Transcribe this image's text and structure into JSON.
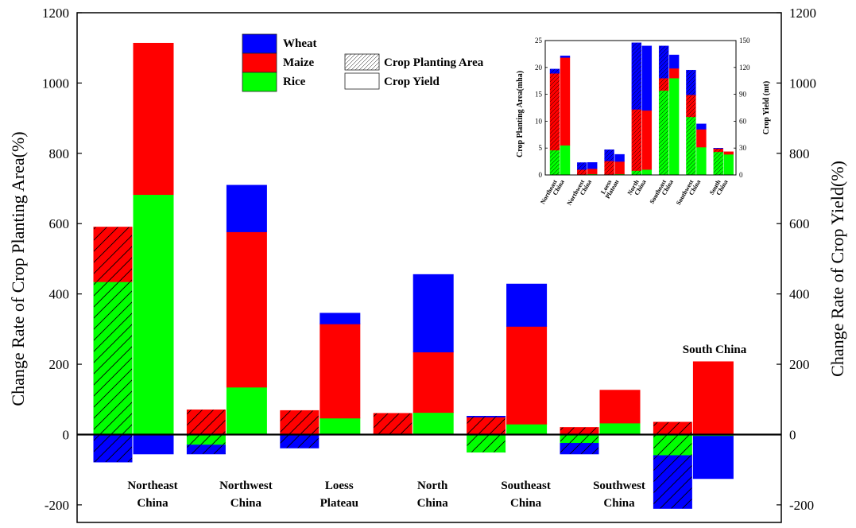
{
  "chart_data": [
    {
      "type": "bar",
      "stacked": true,
      "categories": [
        "Northeast China",
        "Northwest China",
        "Loess Plateau",
        "North China",
        "Southeast China",
        "Southwest China",
        "South China"
      ],
      "category_labels": [
        [
          "Northeast",
          "China"
        ],
        [
          "Northwest",
          "China"
        ],
        [
          "Loess",
          "Plateau"
        ],
        [
          "North",
          "China"
        ],
        [
          "Southeast",
          "China"
        ],
        [
          "Southwest",
          "China"
        ],
        []
      ],
      "series": [
        {
          "name": "Wheat",
          "color": "#0000ff"
        },
        {
          "name": "Maize",
          "color": "#ff0000"
        },
        {
          "name": "Rice",
          "color": "#00ff00"
        }
      ],
      "measures": [
        {
          "name": "Crop Planting Area",
          "pattern": "hatched",
          "axis": "left"
        },
        {
          "name": "Crop Yield",
          "pattern": "solid",
          "axis": "right"
        }
      ],
      "planting_area": {
        "Rice": [
          435,
          -30,
          0,
          0,
          -50,
          -25,
          -60
        ],
        "Maize": [
          155,
          70,
          68,
          60,
          50,
          20,
          35
        ],
        "Wheat": [
          -78,
          -25,
          -38,
          0,
          2,
          -30,
          -150
        ]
      },
      "yield": {
        "Rice": [
          683,
          135,
          47,
          63,
          30,
          33,
          -5
        ],
        "Maize": [
          430,
          442,
          268,
          172,
          278,
          93,
          207
        ],
        "Wheat": [
          -55,
          132,
          30,
          220,
          120,
          0,
          -120
        ]
      },
      "ylabel": "Change Rate of Crop Planting Area(%)",
      "y2label": "Change Rate of Crop Yield(%)",
      "ylim": [
        -250,
        1200
      ],
      "yticks": [
        -200,
        0,
        200,
        400,
        600,
        800,
        1000,
        1200
      ],
      "y2ticks": [
        -200,
        0,
        200,
        400,
        600,
        800,
        1000,
        1200
      ],
      "annotation": "South China"
    },
    {
      "type": "bar",
      "stacked": true,
      "categories": [
        "Northeast China",
        "Northwest China",
        "Loess Plateau",
        "North China",
        "Southeast China",
        "Southwest China",
        "South China"
      ],
      "category_labels": [
        [
          "Northeast",
          "China"
        ],
        [
          "Northwest",
          "China"
        ],
        [
          "Loess",
          "Plateau"
        ],
        [
          "North",
          "China"
        ],
        [
          "Southeast",
          "China"
        ],
        [
          "Southwest",
          "China"
        ],
        [
          "South",
          "China"
        ]
      ],
      "planting_area": {
        "Rice": [
          4.6,
          0.1,
          0.1,
          0.8,
          15.7,
          10.8,
          4.3
        ],
        "Maize": [
          14.3,
          0.9,
          2.5,
          11.4,
          2.3,
          4.1,
          0.6
        ],
        "Wheat": [
          0.8,
          1.3,
          2.1,
          12.4,
          6.0,
          4.6,
          0.1
        ]
      },
      "yield": {
        "Rice": [
          33,
          1,
          1,
          6,
          108,
          31,
          23
        ],
        "Maize": [
          98,
          6,
          14,
          66,
          11,
          20,
          3
        ],
        "Wheat": [
          2,
          7,
          8,
          72,
          15,
          6,
          0
        ]
      },
      "ylabel": "Crop Planting Area(mha)",
      "y2label": "Crop Yield (mt)",
      "ylim": [
        0,
        25
      ],
      "y2lim": [
        0,
        150
      ],
      "yticks": [
        0,
        5,
        10,
        15,
        20,
        25
      ],
      "y2ticks": [
        0,
        30,
        60,
        90,
        120,
        150
      ]
    }
  ]
}
